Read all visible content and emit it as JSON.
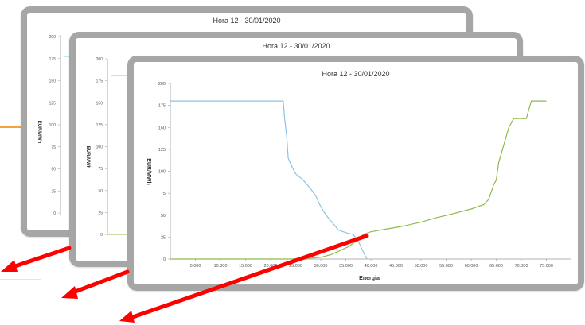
{
  "colors": {
    "supply": "#8fba4b",
    "demand": "#8cc3df",
    "arrow": "#ff0000",
    "accent": "#f2a33a",
    "frame": "#a6a6a6"
  },
  "back_charts": [
    {
      "title": "Hora 12 - 30/01/2020",
      "y_ticks": [
        "200",
        "175",
        "150",
        "125",
        "100",
        "75",
        "50",
        "25",
        "0"
      ],
      "ylabel": "EUR/MWh"
    },
    {
      "title": "Hora 12 - 30/01/2020",
      "y_ticks": [
        "200",
        "175",
        "150",
        "125",
        "100",
        "75",
        "50",
        "25",
        "0"
      ],
      "ylabel": "EUR/MWh"
    }
  ],
  "chart_data": {
    "type": "line",
    "title": "Hora 12 - 30/01/2020",
    "xlabel": "Energia",
    "ylabel": "EUR/MWh",
    "xlim": [
      0,
      80000
    ],
    "ylim": [
      0,
      200
    ],
    "x_ticks": [
      5000,
      10000,
      15000,
      20000,
      25000,
      30000,
      35000,
      40000,
      45000,
      50000,
      55000,
      60000,
      65000,
      70000,
      75000
    ],
    "x_tick_labels": [
      "5.000",
      "10.000",
      "15.000",
      "20.000",
      "25.000",
      "30.000",
      "35.000",
      "40.000",
      "45.000",
      "50.000",
      "55.000",
      "60.000",
      "65.000",
      "70.000",
      "75.000"
    ],
    "y_ticks": [
      0,
      25,
      50,
      75,
      100,
      125,
      150,
      175,
      200
    ],
    "y_tick_labels": [
      "0",
      "25",
      "50",
      "75",
      "100",
      "125",
      "150",
      "175",
      "200"
    ],
    "grid": false,
    "series": [
      {
        "color": "#8cc3df",
        "points": [
          [
            0,
            180
          ],
          [
            21500,
            180
          ],
          [
            22500,
            180
          ],
          [
            22800,
            160
          ],
          [
            23200,
            140
          ],
          [
            23500,
            115
          ],
          [
            24000,
            108
          ],
          [
            25000,
            97
          ],
          [
            26500,
            90
          ],
          [
            28000,
            80
          ],
          [
            29000,
            72
          ],
          [
            29800,
            62
          ],
          [
            30500,
            55
          ],
          [
            31500,
            47
          ],
          [
            32500,
            40
          ],
          [
            33500,
            33
          ],
          [
            35000,
            30
          ],
          [
            36500,
            28
          ],
          [
            37500,
            20
          ],
          [
            38500,
            8
          ],
          [
            39200,
            0
          ]
        ]
      },
      {
        "color": "#8fba4b",
        "points": [
          [
            0,
            0
          ],
          [
            24000,
            0
          ],
          [
            28000,
            1
          ],
          [
            30000,
            2
          ],
          [
            32000,
            5
          ],
          [
            34000,
            10
          ],
          [
            35500,
            14
          ],
          [
            36500,
            18
          ],
          [
            37500,
            23
          ],
          [
            38500,
            28
          ],
          [
            40000,
            31
          ],
          [
            43000,
            34
          ],
          [
            46000,
            37
          ],
          [
            50000,
            42
          ],
          [
            53000,
            47
          ],
          [
            56000,
            51
          ],
          [
            60000,
            57
          ],
          [
            62500,
            62
          ],
          [
            63500,
            68
          ],
          [
            64500,
            85
          ],
          [
            65000,
            90
          ],
          [
            65500,
            110
          ],
          [
            66500,
            130
          ],
          [
            67500,
            150
          ],
          [
            68500,
            160
          ],
          [
            71000,
            160
          ],
          [
            72000,
            180
          ],
          [
            75000,
            180
          ]
        ]
      }
    ]
  }
}
